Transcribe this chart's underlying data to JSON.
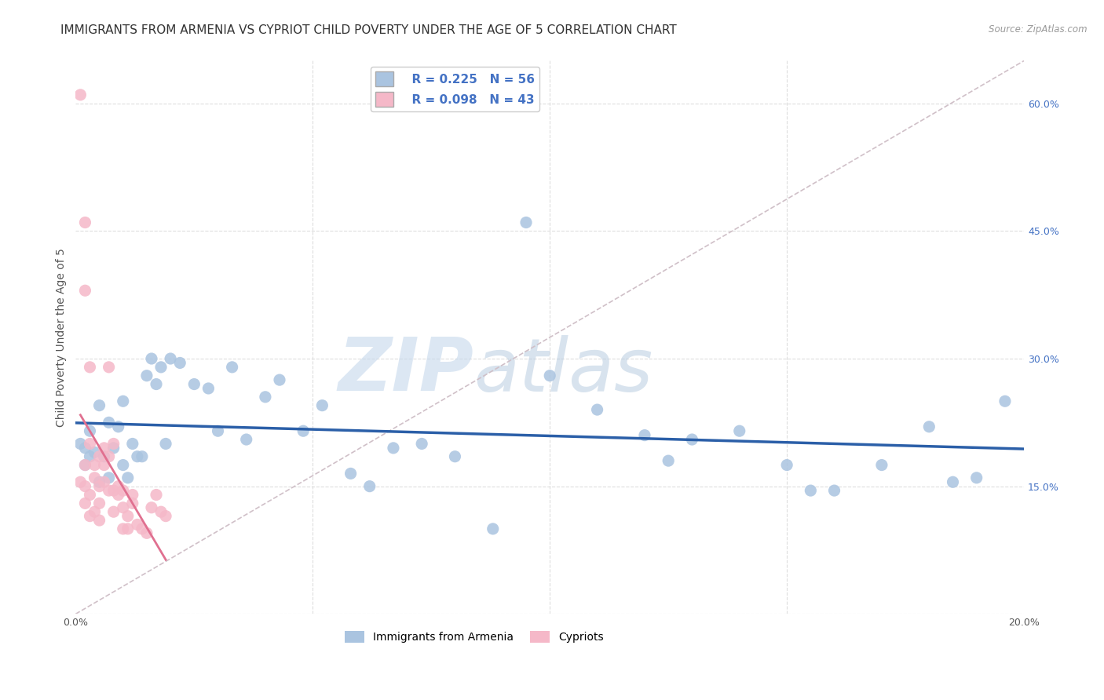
{
  "title": "IMMIGRANTS FROM ARMENIA VS CYPRIOT CHILD POVERTY UNDER THE AGE OF 5 CORRELATION CHART",
  "source": "Source: ZipAtlas.com",
  "ylabel": "Child Poverty Under the Age of 5",
  "xlim": [
    0.0,
    0.2
  ],
  "ylim": [
    0.0,
    0.65
  ],
  "yticks_right": [
    0.0,
    0.15,
    0.3,
    0.45,
    0.6
  ],
  "ytick_labels_right": [
    "",
    "15.0%",
    "30.0%",
    "45.0%",
    "60.0%"
  ],
  "legend_r1": "R = 0.225",
  "legend_n1": "N = 56",
  "legend_r2": "R = 0.098",
  "legend_n2": "N = 43",
  "blue_color": "#aac4e0",
  "pink_color": "#f5b8c8",
  "blue_line_color": "#2b5fa8",
  "pink_line_color": "#e07090",
  "diag_line_color": "#d0c0c8",
  "background_color": "#ffffff",
  "grid_color": "#dddddd",
  "blue_x": [
    0.001,
    0.002,
    0.002,
    0.003,
    0.003,
    0.004,
    0.005,
    0.005,
    0.006,
    0.007,
    0.007,
    0.008,
    0.009,
    0.01,
    0.01,
    0.011,
    0.012,
    0.013,
    0.014,
    0.015,
    0.016,
    0.017,
    0.018,
    0.019,
    0.02,
    0.022,
    0.025,
    0.028,
    0.03,
    0.033,
    0.036,
    0.04,
    0.043,
    0.048,
    0.052,
    0.058,
    0.062,
    0.067,
    0.073,
    0.08,
    0.088,
    0.095,
    0.1,
    0.11,
    0.12,
    0.125,
    0.13,
    0.14,
    0.15,
    0.155,
    0.16,
    0.17,
    0.18,
    0.185,
    0.19,
    0.196
  ],
  "blue_y": [
    0.2,
    0.195,
    0.175,
    0.185,
    0.215,
    0.19,
    0.155,
    0.245,
    0.185,
    0.16,
    0.225,
    0.195,
    0.22,
    0.175,
    0.25,
    0.16,
    0.2,
    0.185,
    0.185,
    0.28,
    0.3,
    0.27,
    0.29,
    0.2,
    0.3,
    0.295,
    0.27,
    0.265,
    0.215,
    0.29,
    0.205,
    0.255,
    0.275,
    0.215,
    0.245,
    0.165,
    0.15,
    0.195,
    0.2,
    0.185,
    0.1,
    0.46,
    0.28,
    0.24,
    0.21,
    0.18,
    0.205,
    0.215,
    0.175,
    0.145,
    0.145,
    0.175,
    0.22,
    0.155,
    0.16,
    0.25
  ],
  "pink_x": [
    0.001,
    0.001,
    0.002,
    0.002,
    0.002,
    0.002,
    0.003,
    0.003,
    0.003,
    0.003,
    0.004,
    0.004,
    0.004,
    0.005,
    0.005,
    0.005,
    0.005,
    0.006,
    0.006,
    0.006,
    0.007,
    0.007,
    0.007,
    0.008,
    0.008,
    0.008,
    0.009,
    0.009,
    0.01,
    0.01,
    0.01,
    0.011,
    0.011,
    0.012,
    0.012,
    0.013,
    0.014,
    0.015,
    0.016,
    0.017,
    0.018,
    0.019,
    0.002
  ],
  "pink_y": [
    0.61,
    0.155,
    0.46,
    0.175,
    0.15,
    0.13,
    0.29,
    0.2,
    0.14,
    0.115,
    0.175,
    0.16,
    0.12,
    0.185,
    0.15,
    0.13,
    0.11,
    0.195,
    0.175,
    0.155,
    0.29,
    0.185,
    0.145,
    0.2,
    0.145,
    0.12,
    0.15,
    0.14,
    0.145,
    0.125,
    0.1,
    0.115,
    0.1,
    0.14,
    0.13,
    0.105,
    0.1,
    0.095,
    0.125,
    0.14,
    0.12,
    0.115,
    0.38
  ],
  "watermark_zip": "ZIP",
  "watermark_atlas": "atlas",
  "title_fontsize": 11,
  "axis_label_fontsize": 10,
  "tick_fontsize": 9,
  "marker_size": 120
}
